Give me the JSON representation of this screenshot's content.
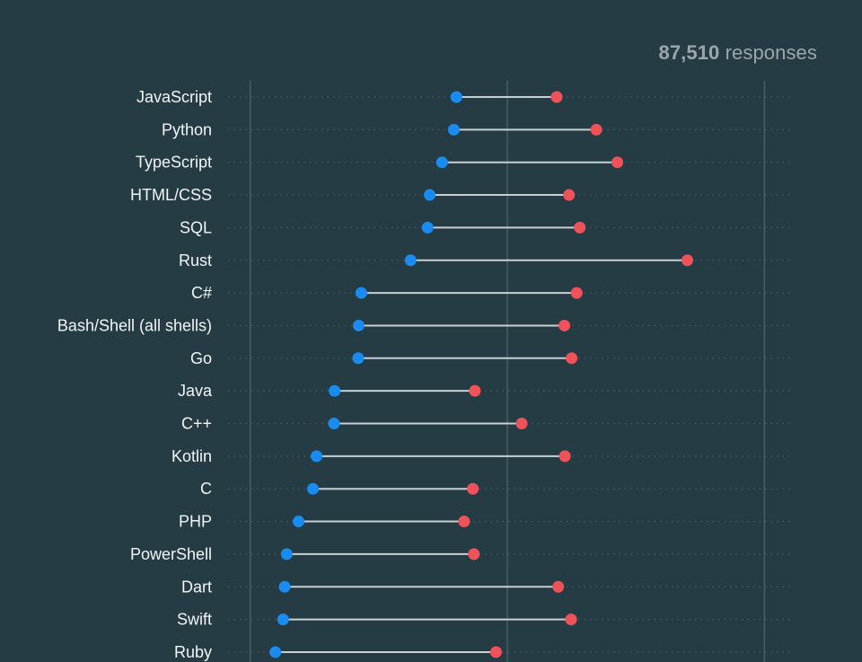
{
  "header": {
    "response_count": "87,510",
    "response_label": "responses"
  },
  "colors": {
    "background": "#263c44",
    "admired": "#1a8cf0",
    "desired": "#f0525a",
    "connector": "#c8d0d4",
    "gridline": "#4a5c64"
  },
  "chart_data": {
    "type": "dumbbell",
    "categories": [
      "JavaScript",
      "Python",
      "TypeScript",
      "HTML/CSS",
      "SQL",
      "Rust",
      "C#",
      "Bash/Shell (all shells)",
      "Go",
      "Java",
      "C++",
      "Kotlin",
      "C",
      "PHP",
      "PowerShell",
      "Dart",
      "Swift",
      "Ruby"
    ],
    "series": [
      {
        "color": "#1a8cf0",
        "values": [
          40.1,
          39.6,
          37.3,
          34.9,
          34.5,
          31.2,
          21.6,
          21.1,
          21.0,
          16.4,
          16.3,
          12.9,
          12.2,
          9.4,
          7.1,
          6.7,
          6.4,
          4.9
        ]
      },
      {
        "color": "#f0525a",
        "values": [
          59.6,
          67.3,
          71.4,
          62.0,
          64.1,
          85.0,
          63.5,
          61.1,
          62.5,
          43.7,
          52.8,
          61.2,
          43.3,
          41.6,
          43.5,
          59.9,
          62.4,
          47.8
        ]
      }
    ],
    "xlim": [
      -5,
      105
    ],
    "reference_lines": [
      0,
      50,
      100
    ],
    "grid": "dotted row guides",
    "legend": "none"
  }
}
